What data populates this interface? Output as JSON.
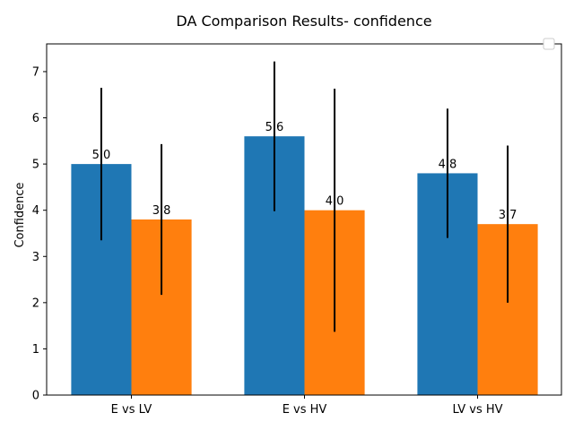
{
  "chart_data": {
    "type": "bar",
    "title": "DA Comparison Results- confidence",
    "xlabel": "",
    "ylabel": "Confidence",
    "categories": [
      "E vs LV",
      "E vs HV",
      "LV vs HV"
    ],
    "ylim": [
      0,
      7.6
    ],
    "yticks": [
      0,
      1,
      2,
      3,
      4,
      5,
      6,
      7
    ],
    "grid": false,
    "legend": "top-right",
    "series": [
      {
        "color": "#1f77b4",
        "values": [
          5.0,
          5.6,
          4.8
        ],
        "errors": [
          1.65,
          1.62,
          1.4
        ],
        "labels": [
          "5.0",
          "5.6",
          "4.8"
        ]
      },
      {
        "color": "#ff7f0e",
        "values": [
          3.8,
          4.0,
          3.7
        ],
        "errors": [
          1.63,
          2.63,
          1.7
        ],
        "labels": [
          "3.8",
          "4.0",
          "3.7"
        ]
      }
    ]
  }
}
